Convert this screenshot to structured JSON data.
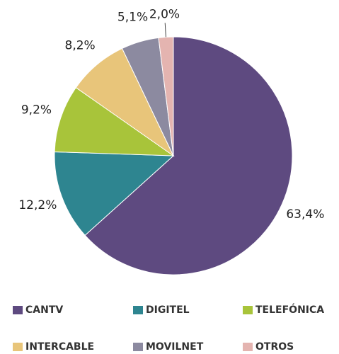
{
  "chart_data": {
    "type": "pie",
    "categories": [
      "CANTV",
      "DIGITEL",
      "TELEFÓNICA",
      "INTERCABLE",
      "MOVILNET",
      "OTROS"
    ],
    "values": [
      63.4,
      12.2,
      9.2,
      8.2,
      5.1,
      2.0
    ],
    "value_labels": [
      "63,4%",
      "12,2%",
      "9,2%",
      "8,2%",
      "5,1%",
      "2,0%"
    ],
    "colors": [
      "#5e4a80",
      "#2e8590",
      "#a8c43a",
      "#e8c57a",
      "#8c8aa0",
      "#e4b4b0"
    ]
  }
}
